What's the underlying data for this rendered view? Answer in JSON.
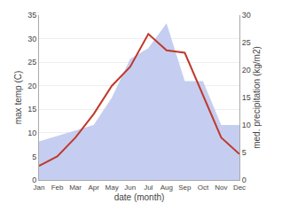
{
  "chart_data": {
    "type": "line",
    "xlabel": "date (month)",
    "ylabel": "max temp (C)",
    "y2label": "med. precipitation (kg/m2)",
    "categories": [
      "Jan",
      "Feb",
      "Mar",
      "Apr",
      "May",
      "Jun",
      "Jul",
      "Aug",
      "Sep",
      "Oct",
      "Nov",
      "Dec"
    ],
    "series": [
      {
        "type": "area",
        "axis": "y2",
        "color": "#c5cef0",
        "values": [
          7.0,
          8.0,
          9.0,
          10.0,
          15.0,
          22.0,
          24.0,
          28.5,
          18.0,
          18.0,
          10.0,
          10.0
        ]
      },
      {
        "type": "line",
        "color": "#c0392b",
        "values": [
          3.0,
          5.0,
          9.0,
          14.0,
          20.0,
          24.0,
          31.0,
          27.5,
          27.0,
          18.0,
          9.0,
          5.5
        ]
      }
    ],
    "ylim": [
      0,
      35
    ],
    "yticks": [
      0,
      5,
      10,
      15,
      20,
      25,
      30,
      35
    ],
    "y2lim": [
      0,
      30
    ],
    "y2ticks": [
      0,
      5,
      10,
      15,
      20,
      25,
      30
    ],
    "grid": true
  }
}
